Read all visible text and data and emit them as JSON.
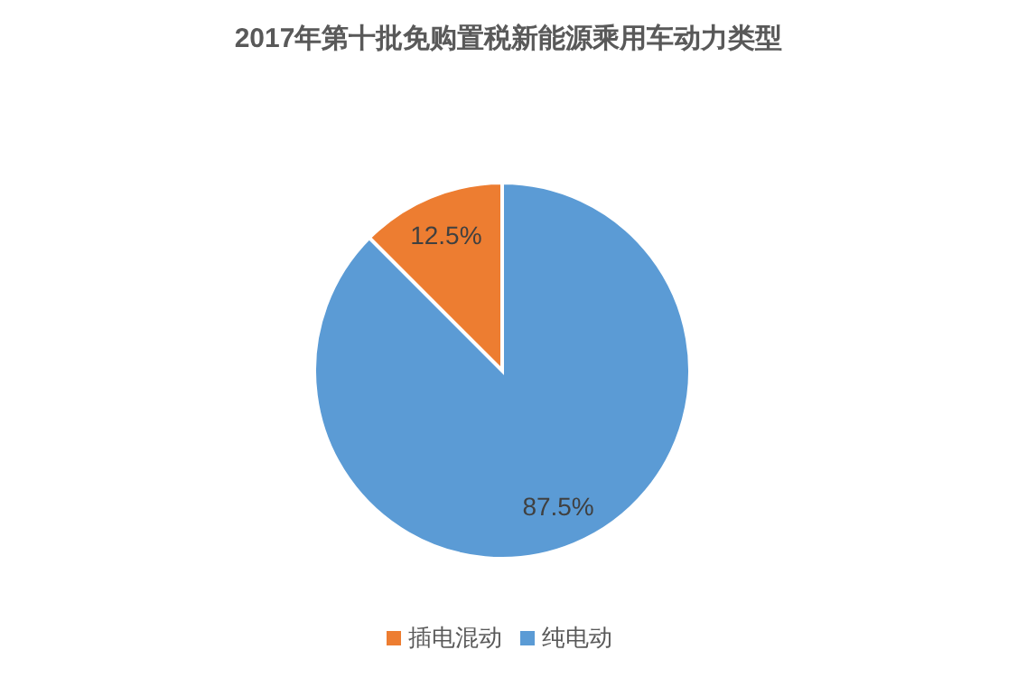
{
  "chart_data": {
    "type": "pie",
    "title": "2017年第十批免购置税新能源乘用车动力类型",
    "categories": [
      "纯电动",
      "插电混动"
    ],
    "values": [
      87.5,
      12.5
    ],
    "colors": [
      "#5b9bd5",
      "#ed7d31"
    ],
    "value_labels": [
      "87.5%",
      "12.5%"
    ],
    "legend": "bottom"
  }
}
